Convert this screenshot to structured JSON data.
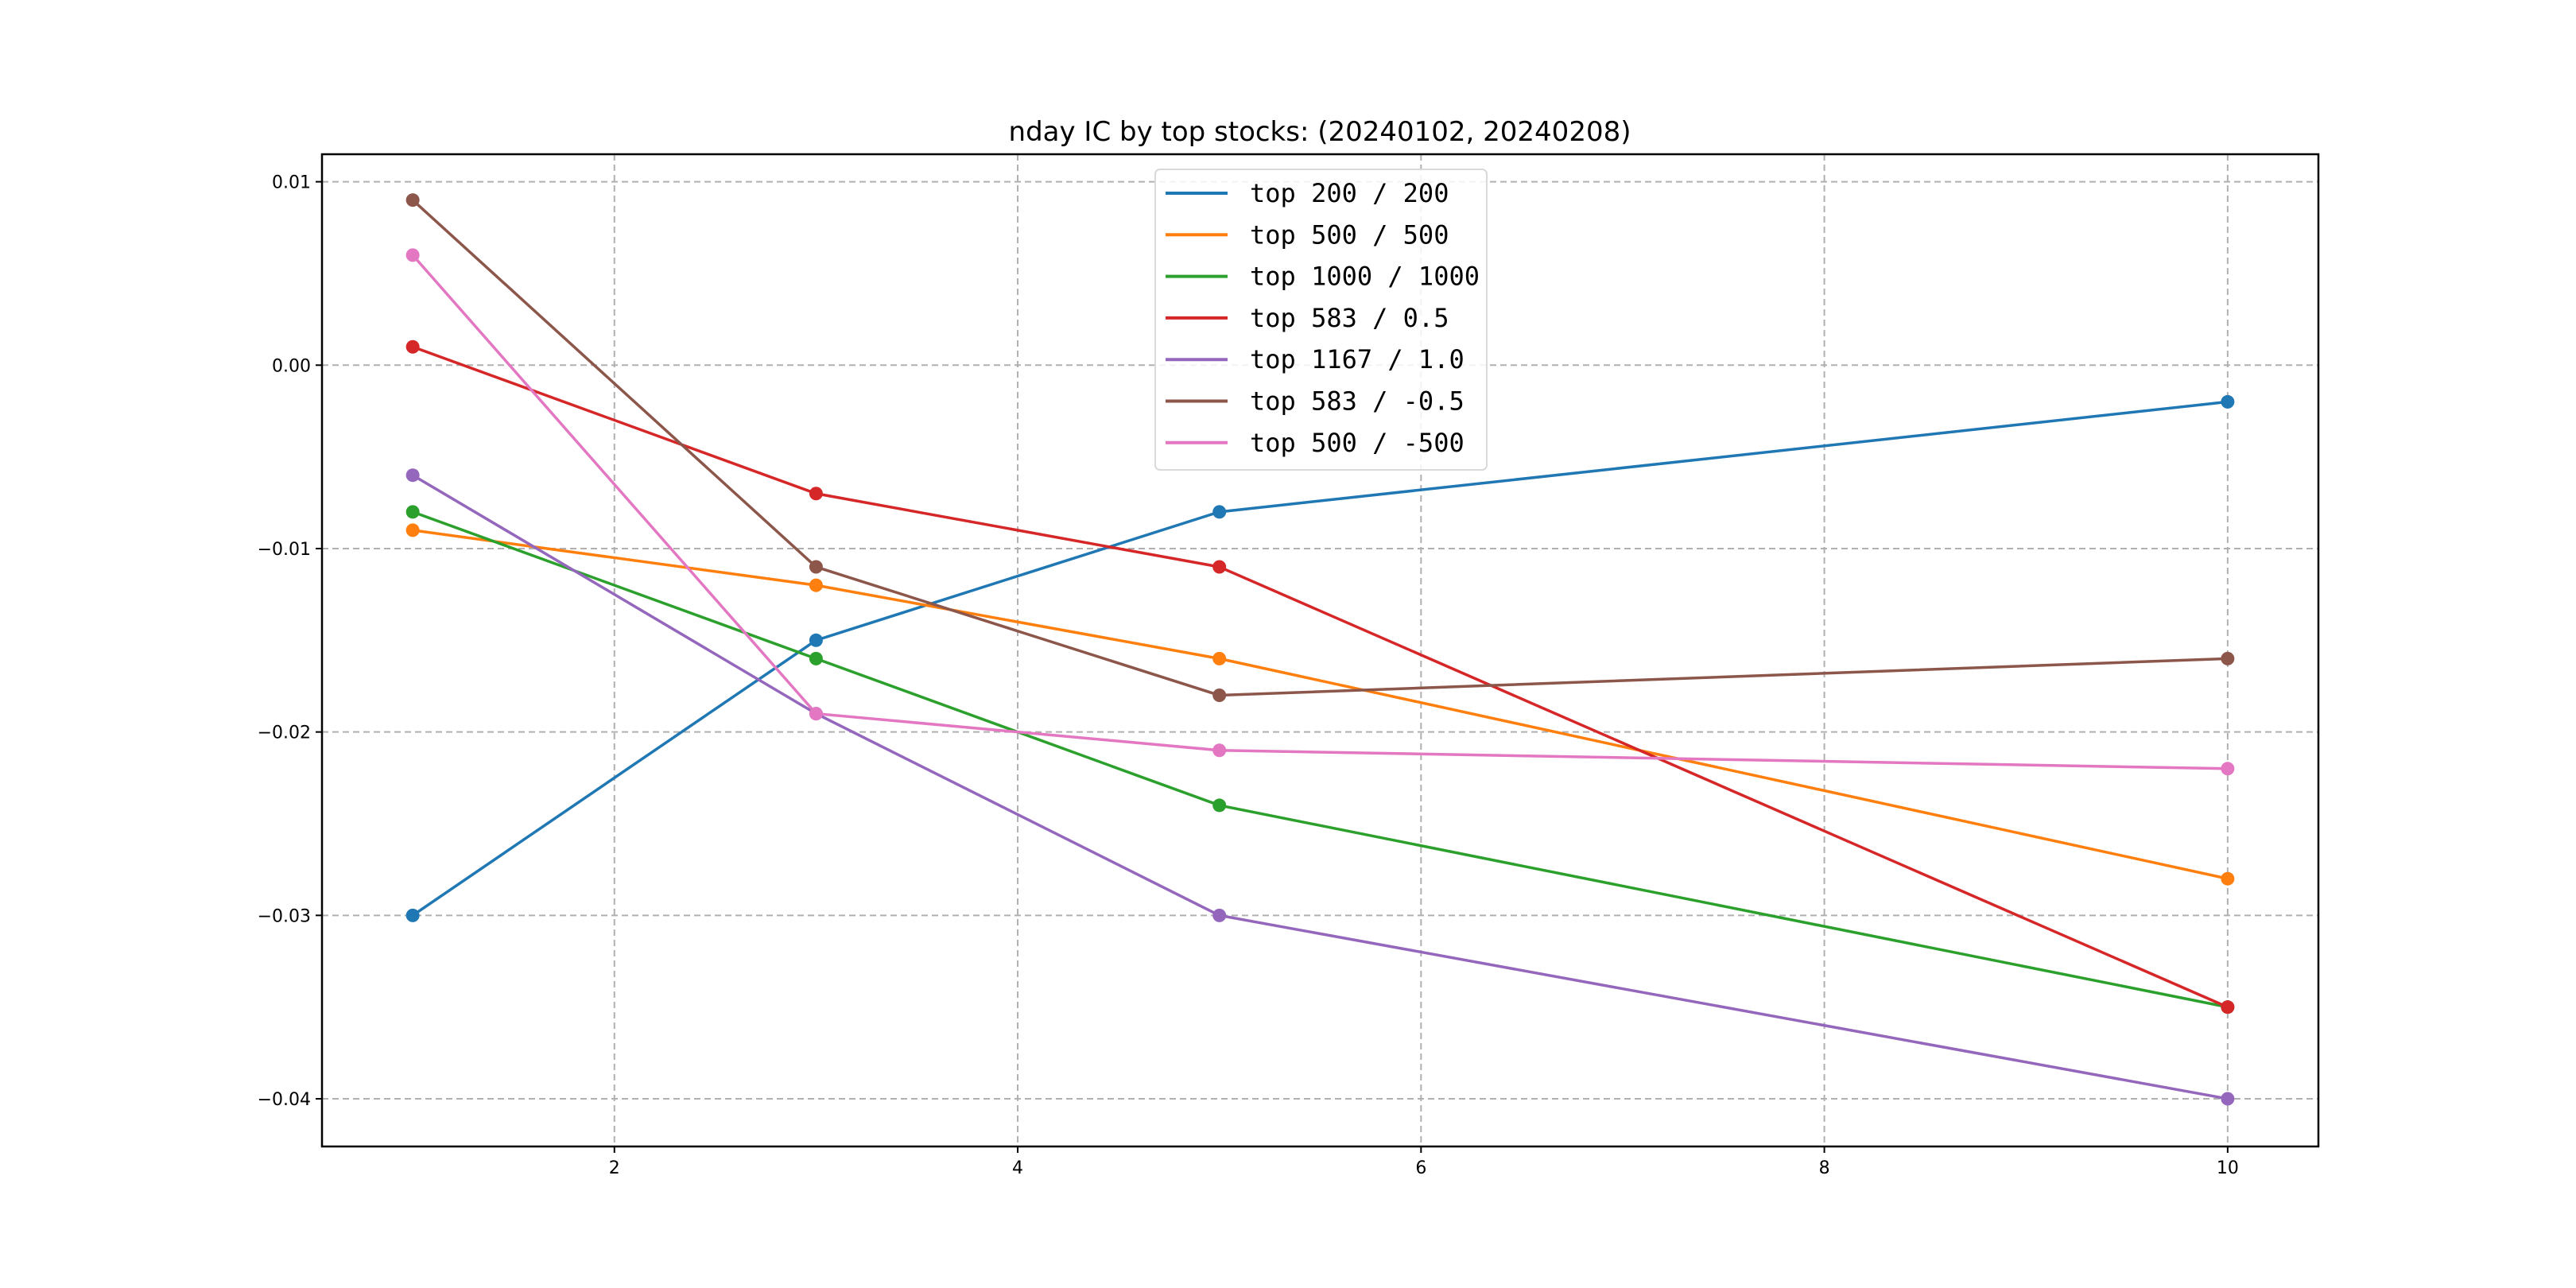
{
  "chart_data": {
    "type": "line",
    "title": "nday IC by top stocks: (20240102, 20240208)",
    "xlabel": "",
    "ylabel": "",
    "x": [
      1,
      3,
      5,
      10
    ],
    "xlim": [
      0.55,
      10.45
    ],
    "ylim": [
      -0.0426,
      0.0115
    ],
    "xticks": [
      2,
      4,
      6,
      8,
      10
    ],
    "xtick_labels": [
      "2",
      "4",
      "6",
      "8",
      "10"
    ],
    "yticks": [
      0.01,
      0.0,
      -0.01,
      -0.02,
      -0.03,
      -0.04
    ],
    "ytick_labels": [
      "0.01",
      "0.00",
      "−0.01",
      "−0.02",
      "−0.03",
      "−0.04"
    ],
    "grid": true,
    "legend_position": "upper-center",
    "markers": true,
    "series": [
      {
        "name": "top 200 / 200",
        "color": "#1f77b4",
        "values": [
          -0.03,
          -0.015,
          -0.008,
          -0.002
        ]
      },
      {
        "name": "top 500 / 500",
        "color": "#ff7f0e",
        "values": [
          -0.009,
          -0.012,
          -0.016,
          -0.028
        ]
      },
      {
        "name": "top 1000 / 1000",
        "color": "#2ca02c",
        "values": [
          -0.008,
          -0.016,
          -0.024,
          -0.035
        ]
      },
      {
        "name": "top 583 / 0.5",
        "color": "#d62728",
        "values": [
          0.001,
          -0.007,
          -0.011,
          -0.035
        ]
      },
      {
        "name": "top 1167 / 1.0",
        "color": "#9467bd",
        "values": [
          -0.006,
          -0.019,
          -0.03,
          -0.04
        ]
      },
      {
        "name": "top 583 / -0.5",
        "color": "#8c564b",
        "values": [
          0.009,
          -0.011,
          -0.018,
          -0.016
        ]
      },
      {
        "name": "top 500 / -500",
        "color": "#e377c2",
        "values": [
          0.006,
          -0.019,
          -0.021,
          -0.022
        ]
      }
    ]
  }
}
